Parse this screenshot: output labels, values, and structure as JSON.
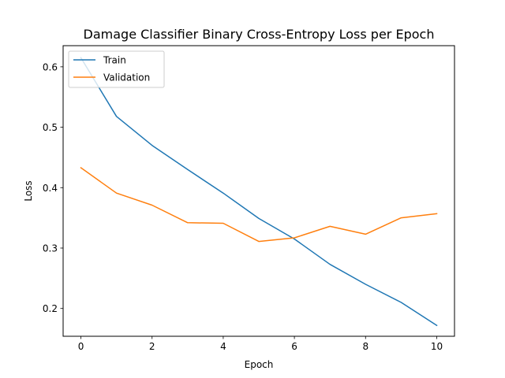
{
  "chart_data": {
    "type": "line",
    "title": "Damage Classifier Binary Cross-Entropy Loss per Epoch",
    "xlabel": "Epoch",
    "ylabel": "Loss",
    "xlim": [
      -0.5,
      10.5
    ],
    "ylim": [
      0.154,
      0.635
    ],
    "x_ticks": [
      0,
      2,
      4,
      6,
      8,
      10
    ],
    "y_ticks": [
      0.2,
      0.3,
      0.4,
      0.5,
      0.6
    ],
    "grid": false,
    "legend_position": "upper left",
    "x": [
      0,
      1,
      2,
      3,
      4,
      5,
      6,
      7,
      8,
      9,
      10
    ],
    "series": [
      {
        "name": "Train",
        "color": "#1f77b4",
        "values": [
          0.615,
          0.518,
          0.47,
          0.43,
          0.391,
          0.349,
          0.315,
          0.273,
          0.24,
          0.21,
          0.172
        ]
      },
      {
        "name": "Validation",
        "color": "#ff7f0e",
        "values": [
          0.433,
          0.391,
          0.371,
          0.342,
          0.341,
          0.311,
          0.317,
          0.336,
          0.323,
          0.35,
          0.357
        ]
      }
    ]
  }
}
